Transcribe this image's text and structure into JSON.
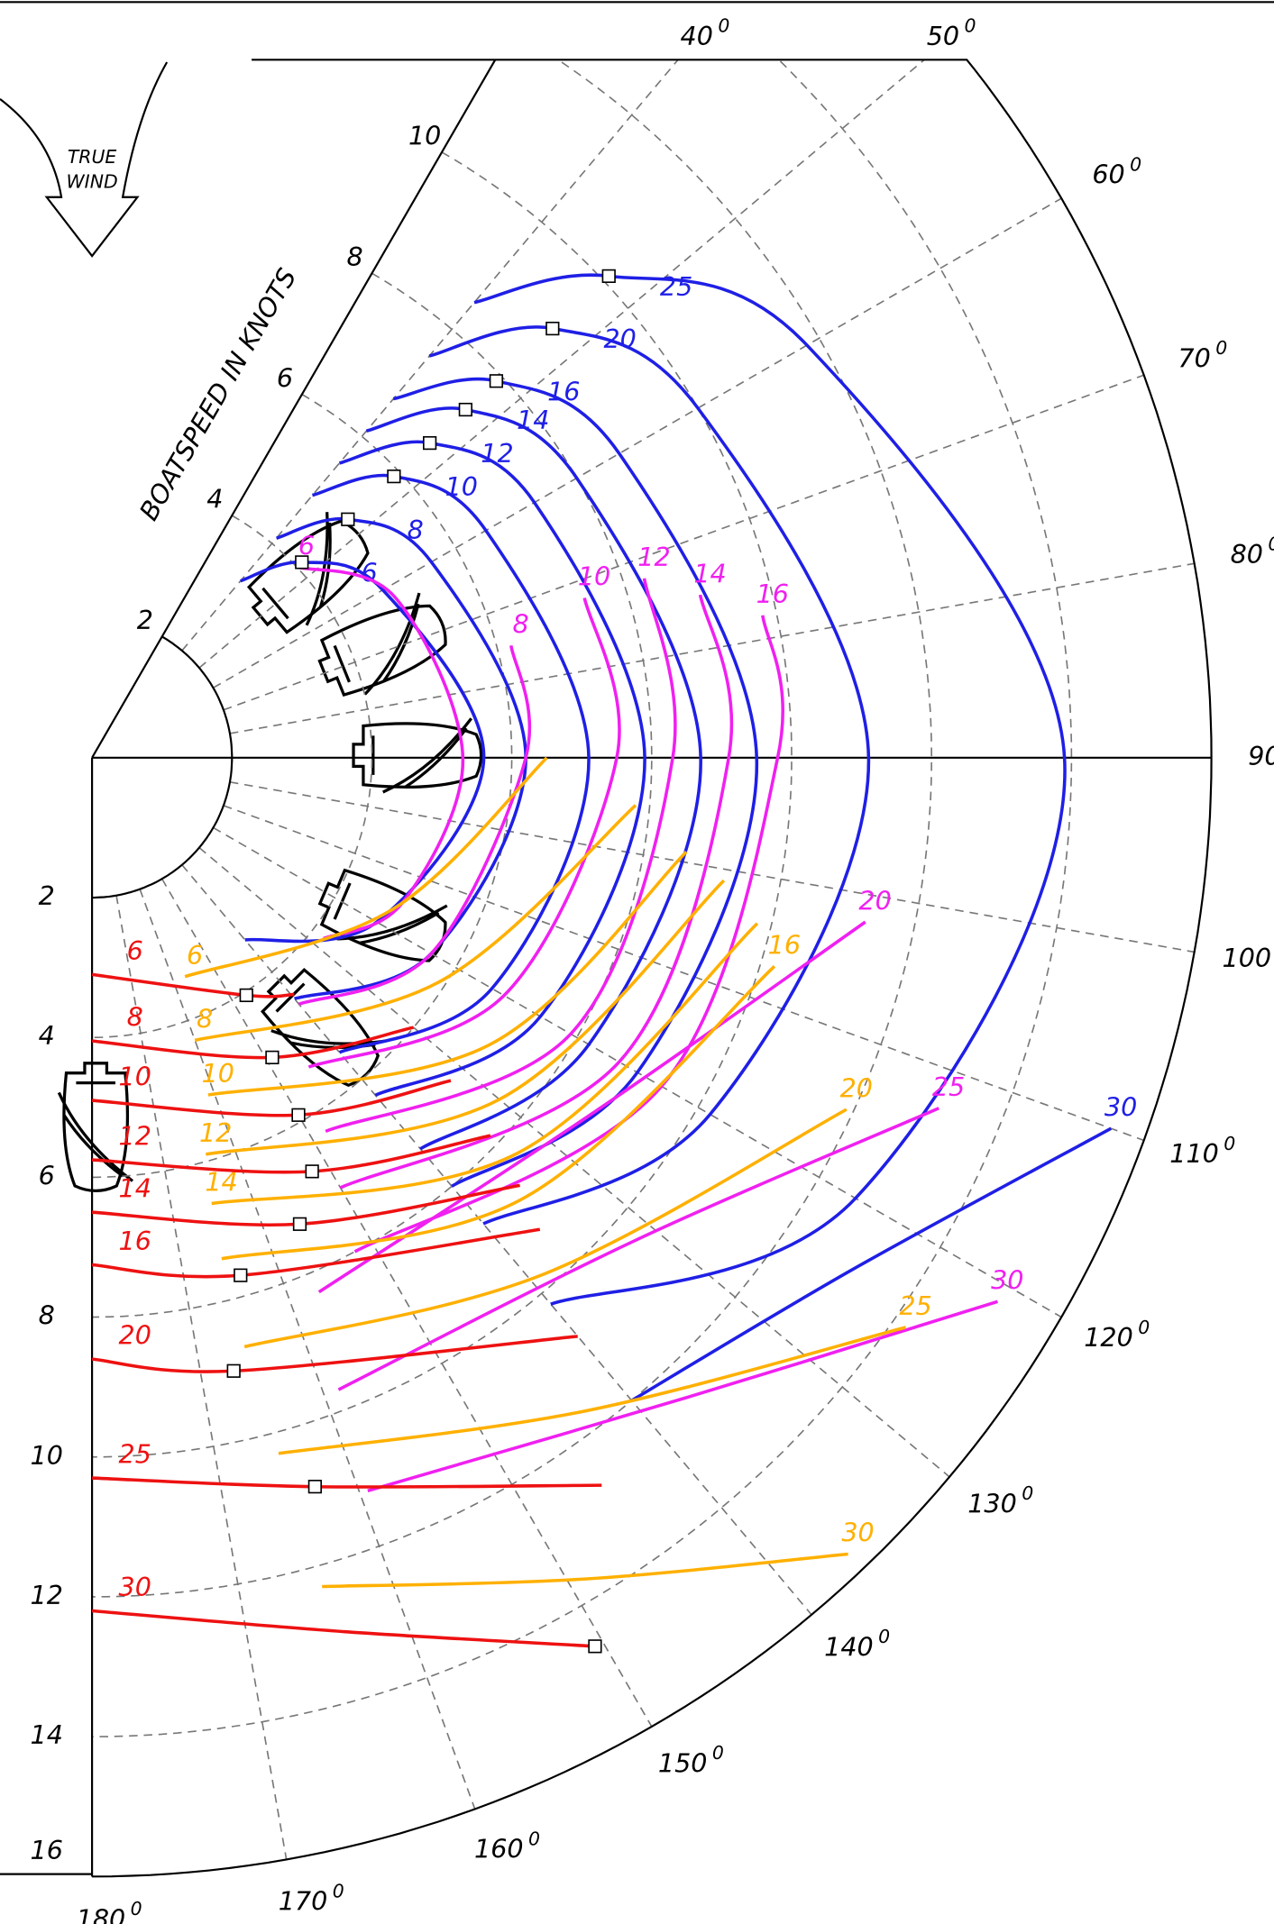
{
  "chart_data": {
    "type": "polar",
    "annotation": [
      "TRUE",
      "WIND"
    ],
    "radial_axis_label": "BOATSPEED IN KNOTS",
    "rlim": [
      0,
      16
    ],
    "rticks": [
      2,
      4,
      6,
      8,
      10,
      12,
      14,
      16
    ],
    "thetalim": [
      30,
      180
    ],
    "thetaticks": [
      40,
      50,
      60,
      70,
      80,
      90,
      100,
      110,
      120,
      130,
      140,
      150,
      160,
      170,
      180
    ],
    "degree_mark": "0",
    "solid_theta": [
      90
    ],
    "grid": true,
    "series": [
      {
        "name": "6",
        "color": "#1f1fe6",
        "theta": [
          40,
          47,
          60,
          90,
          120,
          140
        ],
        "values": [
          3.3,
          4.1,
          4.8,
          5.6,
          4.7,
          3.4
        ]
      },
      {
        "name": "8",
        "color": "#1f1fe6",
        "theta": [
          40,
          47,
          60,
          90,
          120,
          140
        ],
        "values": [
          4.1,
          5.0,
          5.6,
          6.2,
          5.6,
          4.5
        ]
      },
      {
        "name": "10",
        "color": "#1f1fe6",
        "theta": [
          40,
          47,
          60,
          90,
          120,
          140
        ],
        "values": [
          4.9,
          5.9,
          6.5,
          7.1,
          6.6,
          5.5
        ]
      },
      {
        "name": "12",
        "color": "#1f1fe6",
        "theta": [
          40,
          47,
          60,
          90,
          120,
          140
        ],
        "values": [
          5.5,
          6.6,
          7.3,
          7.9,
          7.4,
          6.3
        ]
      },
      {
        "name": "14",
        "color": "#1f1fe6",
        "theta": [
          40,
          47,
          60,
          90,
          120,
          140
        ],
        "values": [
          6.1,
          7.3,
          8.0,
          8.7,
          8.2,
          7.3
        ]
      },
      {
        "name": "16",
        "color": "#1f1fe6",
        "theta": [
          40,
          47,
          60,
          90,
          120,
          140
        ],
        "values": [
          6.7,
          7.9,
          8.7,
          9.5,
          9.0,
          8.0
        ]
      },
      {
        "name": "20",
        "color": "#1f1fe6",
        "theta": [
          40,
          47,
          60,
          90,
          120,
          140
        ],
        "values": [
          7.5,
          9.0,
          10.0,
          11.1,
          10.2,
          8.7
        ]
      },
      {
        "name": "25",
        "color": "#1f1fe6",
        "theta": [
          40,
          47,
          60,
          90,
          120,
          140
        ],
        "values": [
          8.5,
          10.1,
          11.8,
          13.9,
          12.6,
          10.2
        ]
      },
      {
        "name": "30",
        "color": "#1f1fe6",
        "theta": [
          110,
          124,
          140
        ],
        "values": [
          15.5,
          13.1,
          12.0
        ]
      },
      {
        "name": "6",
        "color": "#f020f0",
        "theta": [
          47,
          62,
          90,
          115,
          128
        ],
        "values": [
          4.0,
          4.9,
          5.3,
          4.9,
          4.2
        ]
      },
      {
        "name": "8",
        "color": "#f020f0",
        "theta": [
          75,
          90,
          120,
          140
        ],
        "values": [
          6.2,
          6.2,
          5.6,
          4.6
        ]
      },
      {
        "name": "10",
        "color": "#f020f0",
        "theta": [
          72,
          90,
          120,
          145
        ],
        "values": [
          7.4,
          7.5,
          6.8,
          5.4
        ]
      },
      {
        "name": "12",
        "color": "#f020f0",
        "theta": [
          72,
          90,
          120,
          148
        ],
        "values": [
          8.3,
          8.3,
          7.9,
          6.3
        ]
      },
      {
        "name": "14",
        "color": "#f020f0",
        "theta": [
          75,
          90,
          120,
          150
        ],
        "values": [
          9.0,
          9.1,
          8.7,
          7.1
        ]
      },
      {
        "name": "16",
        "color": "#f020f0",
        "theta": [
          78,
          90,
          120,
          152
        ],
        "values": [
          9.8,
          9.8,
          9.4,
          8.0
        ]
      },
      {
        "name": "20",
        "color": "#f020f0",
        "theta": [
          102,
          125,
          157
        ],
        "values": [
          11.3,
          8.8,
          8.3
        ]
      },
      {
        "name": "25",
        "color": "#f020f0",
        "theta": [
          112.5,
          131.5,
          158.7
        ],
        "values": [
          13.1,
          10.4,
          9.7
        ]
      },
      {
        "name": "30",
        "color": "#f020f0",
        "theta": [
          121,
          137,
          159.4
        ],
        "values": [
          15.1,
          12.5,
          11.2
        ]
      },
      {
        "name": "6",
        "color": "#ffb000",
        "theta": [
          157,
          117,
          90
        ],
        "values": [
          3.4,
          4.8,
          6.5
        ]
      },
      {
        "name": "8",
        "color": "#ffb000",
        "theta": [
          160,
          123,
          95
        ],
        "values": [
          4.3,
          5.9,
          7.8
        ]
      },
      {
        "name": "10",
        "color": "#ffb000",
        "theta": [
          161,
          126,
          99
        ],
        "values": [
          5.1,
          7.0,
          8.6
        ]
      },
      {
        "name": "12",
        "color": "#ffb000",
        "theta": [
          164,
          130,
          101
        ],
        "values": [
          5.9,
          7.6,
          9.2
        ]
      },
      {
        "name": "14",
        "color": "#ffb000",
        "theta": [
          165,
          133,
          104
        ],
        "values": [
          6.6,
          8.3,
          9.8
        ]
      },
      {
        "name": "16",
        "color": "#ffb000",
        "theta": [
          107,
          136,
          165.5
        ],
        "values": [
          10.2,
          8.8,
          7.4
        ]
      },
      {
        "name": "20",
        "color": "#ffb000",
        "theta": [
          115,
          139,
          165.5
        ],
        "values": [
          11.9,
          9.8,
          8.7
        ]
      },
      {
        "name": "25",
        "color": "#ffb000",
        "theta": [
          125,
          143,
          165
        ],
        "values": [
          14.2,
          11.7,
          10.3
        ]
      },
      {
        "name": "30",
        "color": "#ffb000",
        "theta": [
          136.5,
          149,
          164.5
        ],
        "values": [
          15.7,
          13.7,
          12.3
        ]
      },
      {
        "name": "6",
        "color": "#ee1111",
        "theta": [
          180,
          147,
          139.5
        ],
        "values": [
          3.1,
          4.05,
          4.45
        ]
      },
      {
        "name": "8",
        "color": "#ee1111",
        "theta": [
          180,
          149,
          130
        ],
        "values": [
          4.05,
          5.0,
          6.0
        ]
      },
      {
        "name": "10",
        "color": "#ee1111",
        "theta": [
          180,
          150,
          132
        ],
        "values": [
          4.9,
          5.9,
          6.9
        ]
      },
      {
        "name": "12",
        "color": "#ee1111",
        "theta": [
          180,
          152,
          133.5
        ],
        "values": [
          5.75,
          6.7,
          7.85
        ]
      },
      {
        "name": "14",
        "color": "#ee1111",
        "theta": [
          180,
          156,
          135
        ],
        "values": [
          6.5,
          7.3,
          8.65
        ]
      },
      {
        "name": "16",
        "color": "#ee1111",
        "theta": [
          180,
          164,
          136.5
        ],
        "values": [
          7.25,
          7.7,
          9.3
        ]
      },
      {
        "name": "20",
        "color": "#ee1111",
        "theta": [
          180,
          167,
          140
        ],
        "values": [
          8.6,
          9.0,
          10.8
        ]
      },
      {
        "name": "25",
        "color": "#ee1111",
        "theta": [
          180,
          163,
          145
        ],
        "values": [
          10.3,
          10.9,
          12.7
        ]
      },
      {
        "name": "30",
        "color": "#ee1111",
        "theta": [
          180,
          164,
          150.5
        ],
        "values": [
          12.2,
          13.0,
          14.6
        ]
      }
    ],
    "targets": [
      {
        "theta": 47,
        "value": 4.1
      },
      {
        "theta": 47,
        "value": 5.0
      },
      {
        "theta": 47,
        "value": 5.9
      },
      {
        "theta": 47,
        "value": 6.6
      },
      {
        "theta": 47,
        "value": 7.3
      },
      {
        "theta": 47,
        "value": 7.9
      },
      {
        "theta": 47,
        "value": 9.0
      },
      {
        "theta": 47,
        "value": 10.1
      },
      {
        "theta": 147,
        "value": 4.05
      },
      {
        "theta": 149,
        "value": 5.0
      },
      {
        "theta": 150,
        "value": 5.9
      },
      {
        "theta": 152,
        "value": 6.7
      },
      {
        "theta": 156,
        "value": 7.3
      },
      {
        "theta": 164,
        "value": 7.7
      },
      {
        "theta": 167,
        "value": 9.0
      },
      {
        "theta": 163,
        "value": 10.9
      },
      {
        "theta": 150.5,
        "value": 14.6
      }
    ]
  }
}
